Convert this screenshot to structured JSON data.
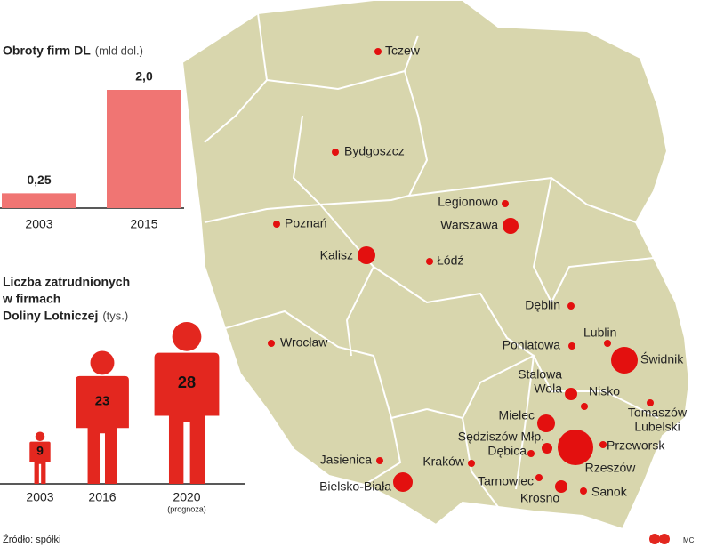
{
  "chart_data": [
    {
      "type": "bar",
      "title": "Obroty firm DL",
      "unit": "(mld dol.)",
      "categories": [
        "2003",
        "2015"
      ],
      "values": [
        0.25,
        2.0
      ],
      "value_labels": [
        "0,25",
        "2,0"
      ],
      "color": "#f07573"
    },
    {
      "type": "pictogram",
      "title": [
        "Liczba zatrudnionych",
        "w firmach",
        "Doliny Lotniczej"
      ],
      "unit": "(tys.)",
      "categories": [
        "2003",
        "2016",
        "2020"
      ],
      "values": [
        9,
        23,
        28
      ],
      "annotation": "(prognoza)",
      "color": "#e3271f"
    }
  ],
  "map": {
    "cities": [
      [
        "Tczew"
      ],
      [
        "Bydgoszcz"
      ],
      [
        "Legionowo"
      ],
      [
        "Warszawa"
      ],
      [
        "Poznań"
      ],
      [
        "Kalisz"
      ],
      [
        "Łódź"
      ],
      [
        "Dęblin"
      ],
      [
        "Lublin"
      ],
      [
        "Poniatowa"
      ],
      [
        "Świdnik"
      ],
      [
        "Wrocław"
      ],
      [
        "Stalowa",
        "Wola"
      ],
      [
        "Nisko"
      ],
      [
        "Tomaszów",
        "Lubelski"
      ],
      [
        "Mielec"
      ],
      [
        "Sędziszów Młp."
      ],
      [
        "Dębica"
      ],
      [
        "Przeworsk"
      ],
      [
        "Rzeszów"
      ],
      [
        "Jasienica"
      ],
      [
        "Kraków"
      ],
      [
        "Tarnowiec"
      ],
      [
        "Bielsko-Biała"
      ],
      [
        "Krosno"
      ],
      [
        "Sanok"
      ]
    ]
  },
  "source": "Źródło: spółki",
  "credit": "MC"
}
